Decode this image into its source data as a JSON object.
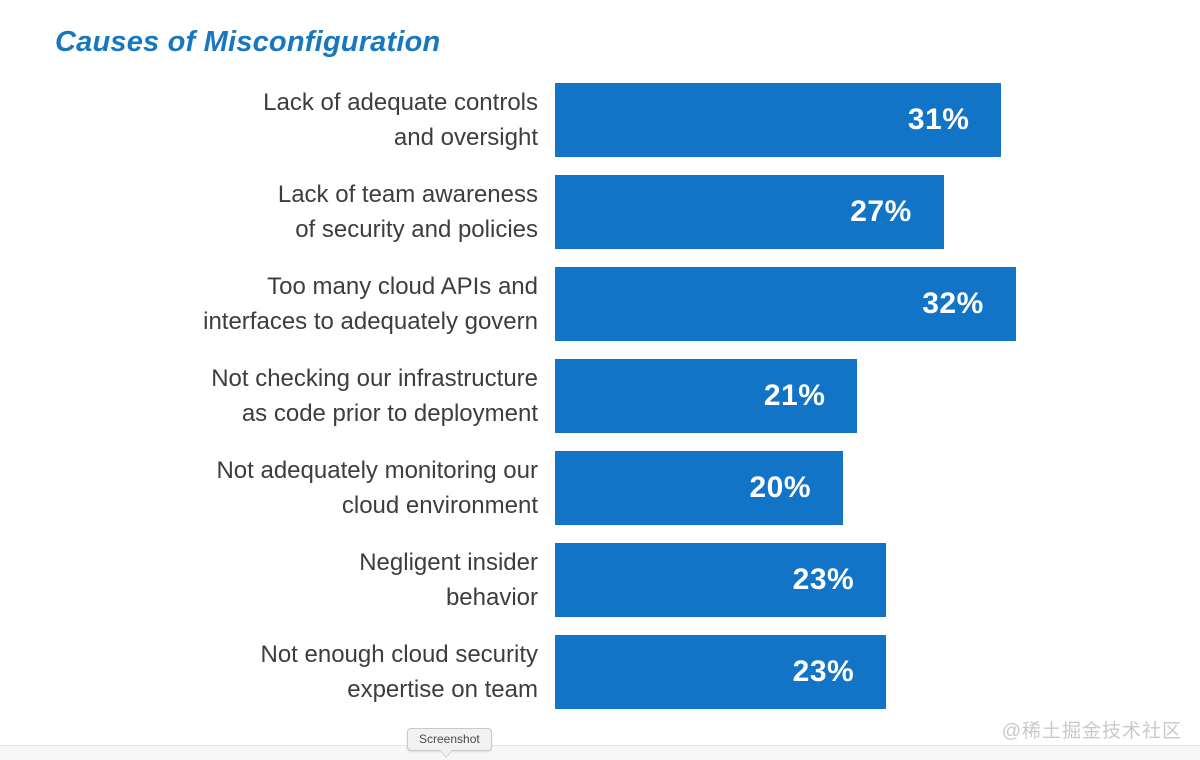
{
  "title": "Causes of Misconfiguration",
  "colors": {
    "title_blue": "#1878be",
    "bar_blue": "#1174c6",
    "label_text": "#3d3d3d",
    "value_text": "#ffffff",
    "watermark_gray": "#c9c9c9"
  },
  "chart_data": {
    "type": "bar",
    "orientation": "horizontal",
    "title": "Causes of Misconfiguration",
    "categories": [
      "Lack of adequate controls and oversight",
      "Lack of team awareness of security and policies",
      "Too many cloud APIs and interfaces to adequately govern",
      "Not checking our infrastructure as code prior to deployment",
      "Not adequately monitoring our cloud environment",
      "Negligent insider behavior",
      "Not enough cloud security expertise on team"
    ],
    "category_lines": [
      [
        "Lack of adequate controls",
        "and oversight"
      ],
      [
        "Lack of team awareness",
        "of security and policies"
      ],
      [
        "Too many cloud APIs and",
        "interfaces to adequately govern"
      ],
      [
        "Not checking our infrastructure",
        "as code prior to deployment"
      ],
      [
        "Not adequately monitoring our",
        "cloud environment"
      ],
      [
        "Negligent insider",
        "behavior"
      ],
      [
        "Not enough cloud security",
        "expertise on team"
      ]
    ],
    "values": [
      31,
      27,
      32,
      21,
      20,
      23,
      23
    ],
    "value_labels": [
      "31%",
      "27%",
      "32%",
      "21%",
      "20%",
      "23%",
      "23%"
    ],
    "xlim": [
      0,
      35
    ],
    "bar_color": "#1174c6",
    "value_label_color": "#ffffff",
    "grid": false,
    "legend": "none"
  },
  "footer": {
    "tooltip_label": "Screenshot",
    "watermark": "@稀土掘金技术社区"
  }
}
